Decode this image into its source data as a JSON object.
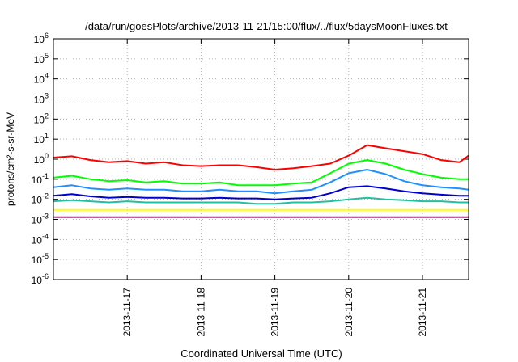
{
  "chart_data": {
    "type": "line",
    "title": "/data/run/goesPlots/archive/2013-11-21/15:00/flux/../flux/5daysMoonFluxes.txt",
    "xlabel": "Coordinated Universal Time (UTC)",
    "ylabel": "protons/cm²-s-sr-MeV",
    "y_scale": "log",
    "ylim": [
      1e-06,
      1000000.0
    ],
    "xlim": [
      "2013-11-16 00:00",
      "2013-11-21 15:00"
    ],
    "grid": true,
    "x_ticks": [
      "2013-11-17",
      "2013-11-18",
      "2013-11-19",
      "2013-11-20",
      "2013-11-21"
    ],
    "y_ticks": [
      {
        "base": "10",
        "exp": "-6",
        "value": 1e-06
      },
      {
        "base": "10",
        "exp": "-5",
        "value": 1e-05
      },
      {
        "base": "10",
        "exp": "-4",
        "value": 0.0001
      },
      {
        "base": "10",
        "exp": "-3",
        "value": 0.001
      },
      {
        "base": "10",
        "exp": "-2",
        "value": 0.01
      },
      {
        "base": "10",
        "exp": "-1",
        "value": 0.1
      },
      {
        "base": "10",
        "exp": "0",
        "value": 1
      },
      {
        "base": "10",
        "exp": "1",
        "value": 10
      },
      {
        "base": "10",
        "exp": "2",
        "value": 100
      },
      {
        "base": "10",
        "exp": "3",
        "value": 1000
      },
      {
        "base": "10",
        "exp": "4",
        "value": 10000
      },
      {
        "base": "10",
        "exp": "5",
        "value": 100000
      },
      {
        "base": "10",
        "exp": "6",
        "value": 1000000
      }
    ],
    "x": [
      "2013-11-16 00:00",
      "2013-11-16 06:00",
      "2013-11-16 12:00",
      "2013-11-16 18:00",
      "2013-11-17 00:00",
      "2013-11-17 06:00",
      "2013-11-17 12:00",
      "2013-11-17 18:00",
      "2013-11-18 00:00",
      "2013-11-18 06:00",
      "2013-11-18 12:00",
      "2013-11-18 18:00",
      "2013-11-19 00:00",
      "2013-11-19 06:00",
      "2013-11-19 12:00",
      "2013-11-19 18:00",
      "2013-11-20 00:00",
      "2013-11-20 06:00",
      "2013-11-20 12:00",
      "2013-11-20 18:00",
      "2013-11-21 00:00",
      "2013-11-21 06:00",
      "2013-11-21 12:00",
      "2013-11-21 15:00"
    ],
    "series": [
      {
        "color": "#ff0000",
        "values": [
          1.2,
          1.4,
          0.9,
          0.7,
          0.8,
          0.6,
          0.7,
          0.5,
          0.45,
          0.5,
          0.5,
          0.4,
          0.3,
          0.35,
          0.45,
          0.6,
          1.5,
          5.0,
          3.5,
          2.5,
          1.8,
          0.9,
          0.7,
          1.5
        ]
      },
      {
        "color": "#00ff00",
        "values": [
          0.12,
          0.15,
          0.1,
          0.08,
          0.09,
          0.07,
          0.08,
          0.06,
          0.06,
          0.07,
          0.05,
          0.05,
          0.05,
          0.06,
          0.07,
          0.2,
          0.6,
          0.9,
          0.6,
          0.3,
          0.18,
          0.12,
          0.1,
          0.1
        ]
      },
      {
        "color": "#1e90ff",
        "values": [
          0.04,
          0.05,
          0.035,
          0.03,
          0.035,
          0.03,
          0.03,
          0.025,
          0.025,
          0.03,
          0.025,
          0.025,
          0.02,
          0.025,
          0.03,
          0.07,
          0.2,
          0.3,
          0.18,
          0.08,
          0.05,
          0.04,
          0.035,
          0.03
        ]
      },
      {
        "color": "#0000cd",
        "values": [
          0.015,
          0.018,
          0.014,
          0.012,
          0.013,
          0.012,
          0.012,
          0.011,
          0.011,
          0.012,
          0.011,
          0.011,
          0.01,
          0.011,
          0.012,
          0.02,
          0.04,
          0.045,
          0.035,
          0.025,
          0.02,
          0.017,
          0.015,
          0.015
        ]
      },
      {
        "color": "#20c0a0",
        "values": [
          0.008,
          0.009,
          0.008,
          0.007,
          0.008,
          0.007,
          0.007,
          0.007,
          0.007,
          0.007,
          0.007,
          0.006,
          0.006,
          0.007,
          0.007,
          0.008,
          0.01,
          0.012,
          0.01,
          0.009,
          0.008,
          0.008,
          0.007,
          0.007
        ]
      },
      {
        "color": "#ffff00",
        "values": [
          0.003,
          0.003,
          0.003,
          0.003,
          0.003,
          0.003,
          0.003,
          0.003,
          0.003,
          0.003,
          0.003,
          0.003,
          0.003,
          0.003,
          0.003,
          0.003,
          0.003,
          0.003,
          0.003,
          0.003,
          0.003,
          0.003,
          0.003,
          0.003
        ]
      },
      {
        "color": "#a0307a",
        "values": [
          0.0013,
          0.0013,
          0.0013,
          0.0013,
          0.0013,
          0.0013,
          0.0013,
          0.0013,
          0.0013,
          0.0013,
          0.0013,
          0.0013,
          0.0013,
          0.0013,
          0.0013,
          0.0013,
          0.0013,
          0.0013,
          0.0013,
          0.0013,
          0.0013,
          0.0013,
          0.0013,
          0.0013
        ]
      }
    ]
  }
}
